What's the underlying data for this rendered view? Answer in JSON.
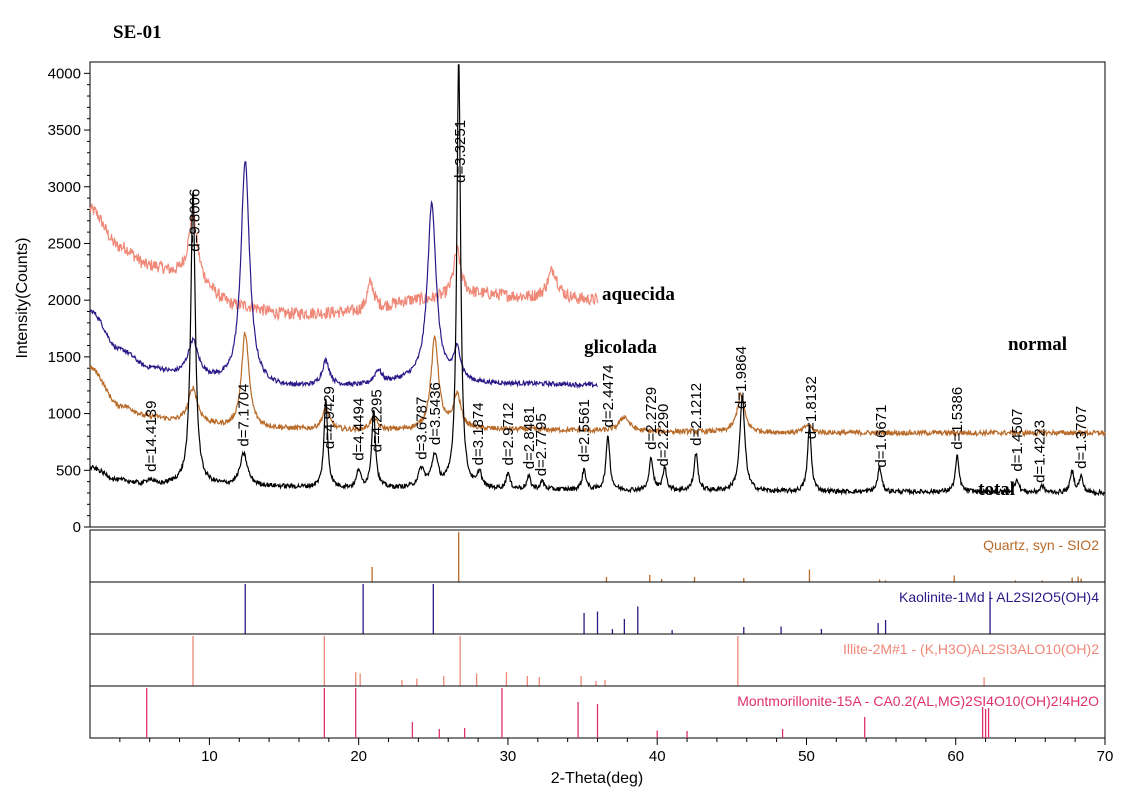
{
  "chart_data": {
    "type": "line",
    "title": "SE-01",
    "xlabel": "2-Theta(deg)",
    "ylabel": "Intensity(Counts)",
    "xlim": [
      2,
      70
    ],
    "ylim": [
      0,
      4100
    ],
    "yticks": [
      0,
      500,
      1000,
      1500,
      2000,
      2500,
      3000,
      3500,
      4000
    ],
    "xticks": [
      10,
      20,
      30,
      40,
      50,
      60,
      70
    ],
    "series": [
      {
        "name": "aquecida",
        "color": "#f08878",
        "offset": 1850,
        "xmax": 36,
        "background": [
          [
            2,
            950
          ],
          [
            4,
            620
          ],
          [
            6,
            450
          ],
          [
            8,
            380
          ],
          [
            12,
            100
          ],
          [
            15,
            30
          ],
          [
            20,
            40
          ],
          [
            24,
            150
          ],
          [
            28,
            200
          ],
          [
            32,
            170
          ],
          [
            36,
            150
          ]
        ],
        "peaks": [
          [
            8.9,
            550,
            0.35
          ],
          [
            20.8,
            250,
            0.3
          ],
          [
            26.6,
            400,
            0.3
          ],
          [
            33.0,
            250,
            0.4
          ]
        ],
        "noise": 55
      },
      {
        "name": "glicolada",
        "color": "#2a1a88",
        "offset": 1180,
        "xmax": 36,
        "background": [
          [
            2,
            720
          ],
          [
            4,
            380
          ],
          [
            6,
            220
          ],
          [
            8,
            160
          ],
          [
            12,
            80
          ],
          [
            15,
            50
          ],
          [
            20,
            60
          ],
          [
            24,
            110
          ],
          [
            28,
            80
          ],
          [
            32,
            80
          ],
          [
            36,
            70
          ]
        ],
        "peaks": [
          [
            8.9,
            300,
            0.4
          ],
          [
            12.4,
            1960,
            0.35
          ],
          [
            17.8,
            220,
            0.3
          ],
          [
            21.3,
            120,
            0.3
          ],
          [
            24.9,
            1560,
            0.35
          ],
          [
            26.6,
            270,
            0.3
          ]
        ],
        "noise": 20
      },
      {
        "name": "normal",
        "color": "#b86a28",
        "offset": 820,
        "xmax": 70,
        "background": [
          [
            2,
            580
          ],
          [
            4,
            250
          ],
          [
            6,
            150
          ],
          [
            8,
            110
          ],
          [
            12,
            50
          ],
          [
            20,
            30
          ],
          [
            30,
            40
          ],
          [
            40,
            20
          ],
          [
            50,
            10
          ],
          [
            60,
            10
          ],
          [
            70,
            10
          ]
        ],
        "peaks": [
          [
            8.9,
            300,
            0.35
          ],
          [
            12.4,
            840,
            0.3
          ],
          [
            17.8,
            180,
            0.3
          ],
          [
            21.0,
            100,
            0.3
          ],
          [
            25.1,
            810,
            0.3
          ],
          [
            26.6,
            300,
            0.3
          ],
          [
            37.8,
            130,
            0.4
          ],
          [
            45.6,
            330,
            0.3
          ],
          [
            50.1,
            70,
            0.3
          ]
        ],
        "noise": 22
      },
      {
        "name": "total",
        "color": "#000000",
        "offset": 280,
        "xmax": 70,
        "background": [
          [
            2,
            240
          ],
          [
            4,
            130
          ],
          [
            6,
            80
          ],
          [
            8,
            100
          ],
          [
            12,
            80
          ],
          [
            20,
            60
          ],
          [
            30,
            50
          ],
          [
            40,
            40
          ],
          [
            50,
            30
          ],
          [
            60,
            30
          ],
          [
            70,
            20
          ]
        ],
        "peaks": [
          [
            6.0,
            60,
            0.3
          ],
          [
            8.9,
            2600,
            0.18
          ],
          [
            12.3,
            280,
            0.3
          ],
          [
            17.8,
            770,
            0.15
          ],
          [
            20.0,
            160,
            0.15
          ],
          [
            21.0,
            690,
            0.15
          ],
          [
            24.2,
            160,
            0.25
          ],
          [
            25.1,
            280,
            0.25
          ],
          [
            26.7,
            3800,
            0.15
          ],
          [
            28.1,
            140,
            0.15
          ],
          [
            30.0,
            140,
            0.15
          ],
          [
            31.4,
            110,
            0.15
          ],
          [
            32.3,
            70,
            0.15
          ],
          [
            35.1,
            180,
            0.15
          ],
          [
            36.7,
            490,
            0.15
          ],
          [
            39.6,
            290,
            0.15
          ],
          [
            40.5,
            200,
            0.15
          ],
          [
            42.6,
            330,
            0.15
          ],
          [
            45.7,
            830,
            0.2
          ],
          [
            50.2,
            580,
            0.15
          ],
          [
            54.9,
            220,
            0.15
          ],
          [
            60.1,
            310,
            0.15
          ],
          [
            64.1,
            120,
            0.15
          ],
          [
            65.8,
            60,
            0.15
          ],
          [
            67.8,
            190,
            0.15
          ],
          [
            68.4,
            140,
            0.15
          ]
        ],
        "noise": 20
      }
    ],
    "series_label_positions": [
      [
        36.3,
        2000
      ],
      [
        35.1,
        1535
      ],
      [
        63.5,
        1560
      ],
      [
        61.5,
        280
      ]
    ],
    "d_labels": [
      {
        "text": "d=9.8006",
        "x": 9.0
      },
      {
        "text": "d=3.3251",
        "x": 26.8
      },
      {
        "text": "d=4.9429",
        "x": 18.0
      },
      {
        "text": "d=4.2295",
        "x": 21.2
      },
      {
        "text": "d=7.1704",
        "x": 12.3
      },
      {
        "text": "d=14.4139",
        "x": 6.1
      },
      {
        "text": "d=4.4494",
        "x": 20.0
      },
      {
        "text": "d=3.6787",
        "x": 24.2
      },
      {
        "text": "d=3.5436",
        "x": 25.1
      },
      {
        "text": "d=3.1874",
        "x": 28.0
      },
      {
        "text": "d=2.9712",
        "x": 30.0
      },
      {
        "text": "d=2.8481",
        "x": 31.4
      },
      {
        "text": "d=2.7795",
        "x": 32.2
      },
      {
        "text": "d=2.5561",
        "x": 35.1
      },
      {
        "text": "d=2.4474",
        "x": 36.7
      },
      {
        "text": "d=2.2729",
        "x": 39.6
      },
      {
        "text": "d=2.2290",
        "x": 40.4
      },
      {
        "text": "d=2.1212",
        "x": 42.6
      },
      {
        "text": "d=1.9864",
        "x": 45.6
      },
      {
        "text": "d=1.8132",
        "x": 50.3
      },
      {
        "text": "d=1.6671",
        "x": 55.0
      },
      {
        "text": "d=1.5386",
        "x": 60.1
      },
      {
        "text": "d=1.4507",
        "x": 64.1
      },
      {
        "text": "d=1.4223",
        "x": 65.6
      },
      {
        "text": "d=1.3707",
        "x": 68.4
      }
    ],
    "reference_patterns": [
      {
        "label": "Quartz, syn - SIO2",
        "color": "#b86a28",
        "lines": [
          [
            20.9,
            0.3
          ],
          [
            26.7,
            1.0
          ],
          [
            36.6,
            0.1
          ],
          [
            39.5,
            0.14
          ],
          [
            40.3,
            0.06
          ],
          [
            42.5,
            0.1
          ],
          [
            45.8,
            0.08
          ],
          [
            50.2,
            0.25
          ],
          [
            54.9,
            0.05
          ],
          [
            55.3,
            0.03
          ],
          [
            59.9,
            0.13
          ],
          [
            64.0,
            0.03
          ],
          [
            65.8,
            0.03
          ],
          [
            67.8,
            0.09
          ],
          [
            68.2,
            0.11
          ],
          [
            68.4,
            0.07
          ]
        ]
      },
      {
        "label": "Kaolinite-1Md - AL2SI2O5(OH)4",
        "color": "#2a1a88",
        "lines": [
          [
            12.4,
            1.0
          ],
          [
            20.3,
            1.0
          ],
          [
            25.0,
            1.0
          ],
          [
            35.1,
            0.42
          ],
          [
            36.0,
            0.45
          ],
          [
            37.0,
            0.1
          ],
          [
            37.8,
            0.3
          ],
          [
            38.7,
            0.55
          ],
          [
            41.0,
            0.08
          ],
          [
            45.8,
            0.14
          ],
          [
            48.3,
            0.15
          ],
          [
            51.0,
            0.1
          ],
          [
            54.8,
            0.22
          ],
          [
            55.3,
            0.28
          ],
          [
            62.3,
            0.85
          ]
        ]
      },
      {
        "label": "Illite-2M#1 - (K,H3O)AL2SI3ALO10(OH)2",
        "color": "#f08878",
        "lines": [
          [
            8.9,
            1.0
          ],
          [
            17.7,
            1.0
          ],
          [
            19.8,
            0.28
          ],
          [
            20.1,
            0.25
          ],
          [
            22.9,
            0.12
          ],
          [
            23.9,
            0.15
          ],
          [
            25.7,
            0.2
          ],
          [
            26.8,
            1.0
          ],
          [
            27.9,
            0.25
          ],
          [
            29.9,
            0.28
          ],
          [
            31.3,
            0.2
          ],
          [
            32.1,
            0.18
          ],
          [
            34.9,
            0.2
          ],
          [
            35.9,
            0.1
          ],
          [
            36.5,
            0.12
          ],
          [
            45.4,
            1.0
          ],
          [
            61.9,
            0.18
          ]
        ]
      },
      {
        "label": "Montmorillonite-15A - CA0.2(AL,MG)2SI4O10(OH)2!4H2O",
        "color": "#e0306a",
        "lines": [
          [
            5.8,
            1.0
          ],
          [
            17.7,
            1.0
          ],
          [
            19.8,
            1.0
          ],
          [
            23.6,
            0.32
          ],
          [
            25.4,
            0.18
          ],
          [
            27.1,
            0.2
          ],
          [
            29.6,
            1.0
          ],
          [
            34.7,
            0.72
          ],
          [
            36.0,
            0.68
          ],
          [
            40.0,
            0.15
          ],
          [
            42.0,
            0.14
          ],
          [
            48.4,
            0.18
          ],
          [
            53.9,
            0.42
          ],
          [
            61.8,
            0.62
          ],
          [
            62.0,
            0.58
          ],
          [
            62.2,
            0.6
          ]
        ]
      }
    ]
  }
}
